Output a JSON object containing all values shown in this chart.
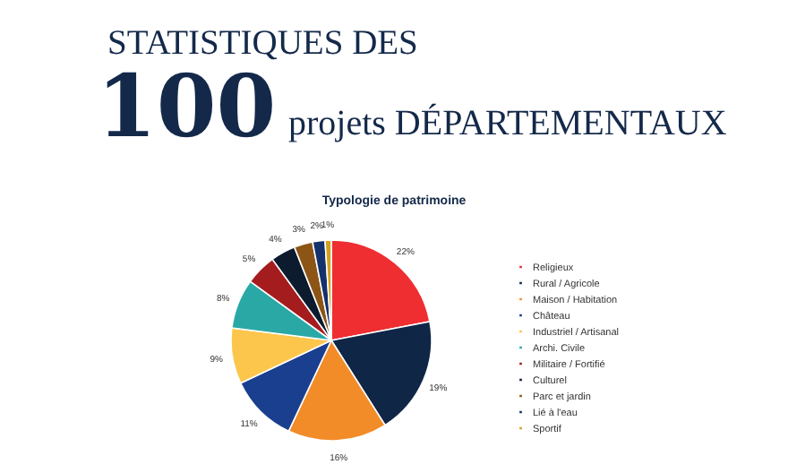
{
  "chart_data": {
    "type": "pie",
    "title": "Typologie de patrimoine",
    "annotations": [
      "STATISTIQUES DES",
      "100",
      "projets DÉPARTEMENTAUX"
    ],
    "categories": [
      "Religieux",
      "Rural / Agricole",
      "Maison / Habitation",
      "Château",
      "Industriel / Artisanal",
      "Archi. Civile",
      "Militaire / Fortifié",
      "Culturel",
      "Parc et jardin",
      "Lié à l'eau",
      "Sportif"
    ],
    "values": [
      22,
      19,
      16,
      11,
      9,
      8,
      5,
      4,
      3,
      2,
      1
    ],
    "value_labels": [
      "22%",
      "19%",
      "16%",
      "11%",
      "9%",
      "8%",
      "5%",
      "4%",
      "3%",
      "2%",
      "1%"
    ],
    "colors": [
      "#ee2e31",
      "#0f2646",
      "#f28c28",
      "#1a3f8f",
      "#fcc64d",
      "#2aa8a6",
      "#a51c1e",
      "#0d1b2e",
      "#8c5516",
      "#13316a",
      "#d4a020"
    ],
    "legend": "right"
  }
}
